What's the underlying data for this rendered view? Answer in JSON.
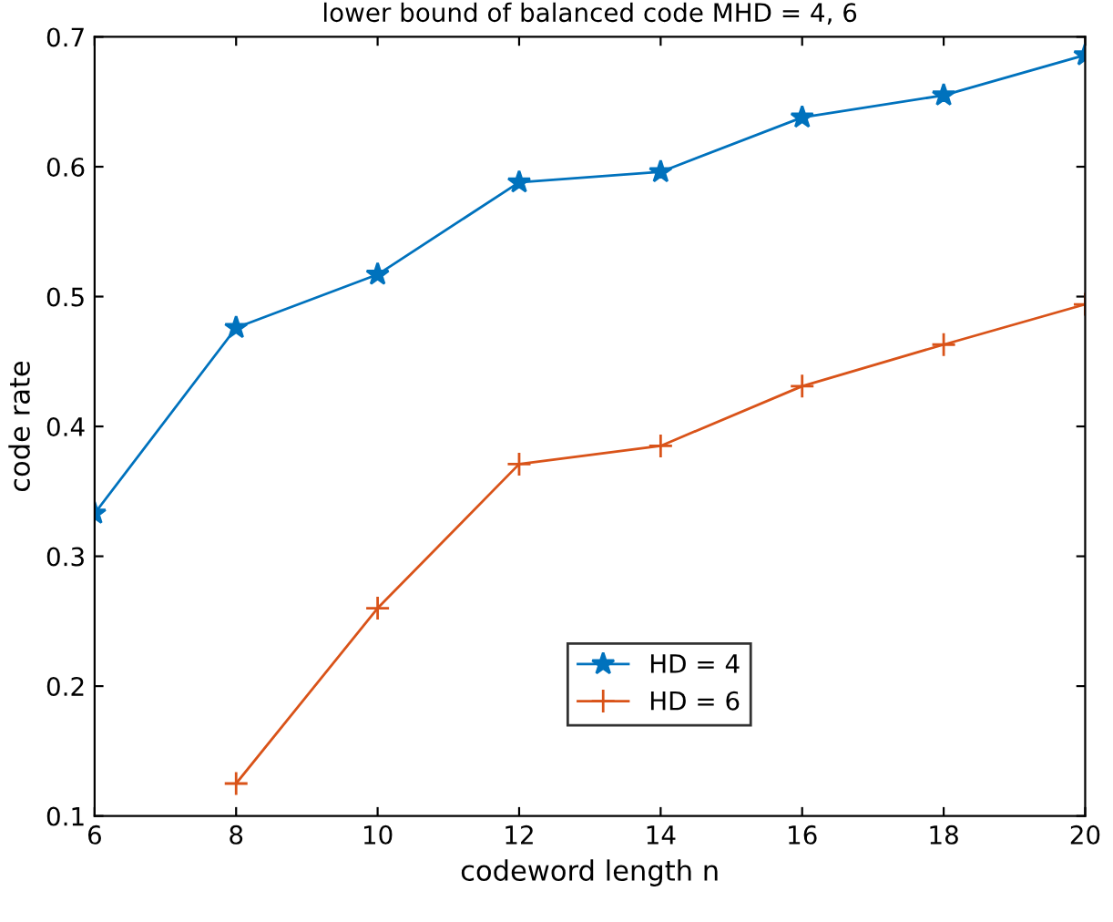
{
  "chart_data": {
    "type": "line",
    "title": "lower bound of balanced code MHD = 4, 6",
    "xlabel": "codeword length n",
    "ylabel": "code rate",
    "series": [
      {
        "name": "HD = 4",
        "color": "#0072bd",
        "marker": "star",
        "x": [
          6,
          8,
          10,
          12,
          14,
          16,
          18,
          20
        ],
        "values": [
          0.333,
          0.476,
          0.517,
          0.588,
          0.596,
          0.638,
          0.655,
          0.686
        ]
      },
      {
        "name": "HD = 6",
        "color": "#d95319",
        "marker": "cross",
        "x": [
          8,
          10,
          12,
          14,
          16,
          18,
          20
        ],
        "values": [
          0.125,
          0.26,
          0.371,
          0.385,
          0.431,
          0.463,
          0.494
        ]
      }
    ],
    "xlim": [
      6,
      20
    ],
    "xticks": [
      6,
      8,
      10,
      12,
      14,
      16,
      18,
      20
    ],
    "ylim": [
      0.1,
      0.7
    ],
    "yticks": [
      0.1,
      0.2,
      0.3,
      0.4,
      0.5,
      0.6,
      0.7
    ],
    "legend": "bottom",
    "grid": false,
    "line_style": "solid"
  }
}
